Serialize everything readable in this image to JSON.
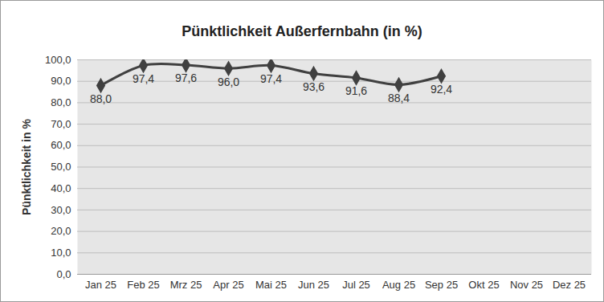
{
  "chart_data": {
    "type": "line",
    "title": "Pünktlichkeit Außerfernbahn (in %)",
    "y_label": "Pünktlichkeit in %",
    "categories": [
      "Jan 25",
      "Feb 25",
      "Mrz 25",
      "Apr 25",
      "Mai 25",
      "Jun 25",
      "Jul 25",
      "Aug 25",
      "Sep 25",
      "Okt 25",
      "Nov 25",
      "Dez 25"
    ],
    "values": [
      88.0,
      97.4,
      97.6,
      96.0,
      97.4,
      93.6,
      91.6,
      88.4,
      92.4,
      null,
      null,
      null
    ],
    "value_labels": [
      "88,0",
      "97,4",
      "97,6",
      "96,0",
      "97,4",
      "93,6",
      "91,6",
      "88,4",
      "92,4",
      null,
      null,
      null
    ],
    "color": "#404040",
    "marker": "diamond",
    "line_style": "solid",
    "data_labels": true,
    "grid": true,
    "ylim": [
      0,
      100
    ],
    "yticks": [
      {
        "value": 0,
        "label": "0,0"
      },
      {
        "value": 10,
        "label": "10,0"
      },
      {
        "value": 20,
        "label": "20,0"
      },
      {
        "value": 30,
        "label": "30,0"
      },
      {
        "value": 40,
        "label": "40,0"
      },
      {
        "value": 50,
        "label": "50,0"
      },
      {
        "value": 60,
        "label": "60,0"
      },
      {
        "value": 70,
        "label": "70,0"
      },
      {
        "value": 80,
        "label": "80,0"
      },
      {
        "value": 90,
        "label": "90,0"
      },
      {
        "value": 100,
        "label": "100,0"
      }
    ]
  }
}
